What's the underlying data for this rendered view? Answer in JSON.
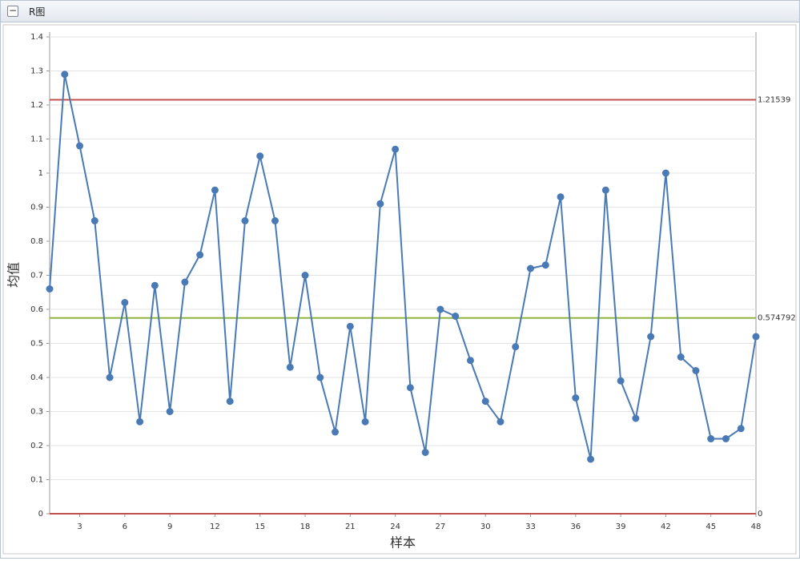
{
  "chart_data": {
    "type": "line",
    "title": "R图",
    "x_label": "样本",
    "y_label": "均值",
    "x": [
      1,
      2,
      3,
      4,
      5,
      6,
      7,
      8,
      9,
      10,
      11,
      12,
      13,
      14,
      15,
      16,
      17,
      18,
      19,
      20,
      21,
      22,
      23,
      24,
      25,
      26,
      27,
      28,
      29,
      30,
      31,
      32,
      33,
      34,
      35,
      36,
      37,
      38,
      39,
      40,
      41,
      42,
      43,
      44,
      45,
      46,
      47,
      48
    ],
    "series": [
      {
        "color": "#4a7ab5",
        "values": [
          0.66,
          1.29,
          1.08,
          0.86,
          0.4,
          0.62,
          0.27,
          0.67,
          0.3,
          0.68,
          0.76,
          0.95,
          0.33,
          0.86,
          1.05,
          0.86,
          0.43,
          0.7,
          0.4,
          0.24,
          0.55,
          0.27,
          0.91,
          1.07,
          0.37,
          0.18,
          0.6,
          0.58,
          0.45,
          0.33,
          0.27,
          0.49,
          0.72,
          0.73,
          0.93,
          0.34,
          0.16,
          0.95,
          0.39,
          0.28,
          0.52,
          1.0,
          0.46,
          0.42,
          0.22,
          0.22,
          0.25,
          0.52
        ]
      }
    ],
    "reference_lines": [
      {
        "value": 1.21539,
        "color": "#c0504d"
      },
      {
        "value": 0.574792,
        "color": "#8db33e"
      },
      {
        "value": 0,
        "color": "#c0504d"
      }
    ],
    "xlim": [
      1,
      48
    ],
    "xticks": [
      3,
      6,
      9,
      12,
      15,
      18,
      21,
      24,
      27,
      30,
      33,
      36,
      39,
      42,
      45,
      48
    ],
    "ylim": [
      0,
      1.4
    ],
    "yticks": [
      0,
      0.1,
      0.2,
      0.3,
      0.4,
      0.5,
      0.6,
      0.7,
      0.8,
      0.9,
      1,
      1.1,
      1.2,
      1.3,
      1.4
    ],
    "grid": true
  }
}
